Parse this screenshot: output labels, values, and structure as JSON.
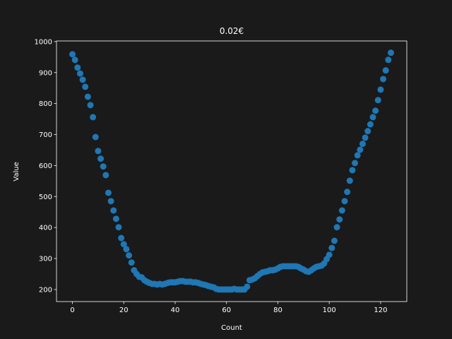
{
  "chart_data": {
    "type": "scatter",
    "title": "0.02€",
    "x_label": "Count",
    "y_label": "Value",
    "x": [
      0,
      1,
      2,
      3,
      4,
      5,
      6,
      7,
      8,
      9,
      10,
      11,
      12,
      13,
      14,
      15,
      16,
      17,
      18,
      19,
      20,
      21,
      22,
      23,
      24,
      25,
      26,
      27,
      28,
      29,
      30,
      31,
      32,
      33,
      34,
      35,
      36,
      37,
      38,
      39,
      40,
      41,
      42,
      43,
      44,
      45,
      46,
      47,
      48,
      49,
      50,
      51,
      52,
      53,
      54,
      55,
      56,
      57,
      58,
      59,
      60,
      61,
      62,
      63,
      64,
      65,
      66,
      67,
      68,
      69,
      70,
      71,
      72,
      73,
      74,
      75,
      76,
      77,
      78,
      79,
      80,
      81,
      82,
      83,
      84,
      85,
      86,
      87,
      88,
      89,
      90,
      91,
      92,
      93,
      94,
      95,
      96,
      97,
      98,
      99,
      100,
      101,
      102,
      103,
      104,
      105,
      106,
      107,
      108,
      109,
      110,
      111,
      112,
      113,
      114,
      115,
      116,
      117,
      118,
      119,
      120,
      121,
      122,
      123,
      124
    ],
    "values": [
      959,
      941,
      916,
      897,
      877,
      854,
      822,
      795,
      756,
      692,
      647,
      622,
      597,
      569,
      512,
      485,
      455,
      428,
      401,
      366,
      346,
      330,
      310,
      287,
      262,
      250,
      241,
      239,
      230,
      225,
      221,
      218,
      218,
      216,
      218,
      216,
      218,
      221,
      223,
      223,
      223,
      225,
      227,
      227,
      225,
      225,
      225,
      223,
      223,
      221,
      218,
      216,
      214,
      211,
      209,
      207,
      202,
      200,
      200,
      200,
      200,
      200,
      200,
      202,
      200,
      200,
      200,
      200,
      209,
      230,
      232,
      236,
      243,
      250,
      255,
      257,
      259,
      262,
      262,
      264,
      268,
      273,
      275,
      275,
      275,
      275,
      275,
      275,
      273,
      268,
      264,
      259,
      257,
      262,
      268,
      273,
      275,
      277,
      284,
      298,
      312,
      334,
      357,
      401,
      426,
      455,
      485,
      515,
      551,
      585,
      608,
      633,
      651,
      670,
      690,
      711,
      733,
      756,
      777,
      811,
      845,
      879,
      907,
      941,
      964
    ],
    "color": "#1f77b4",
    "xlim": [
      -6.2,
      130.2
    ],
    "ylim": [
      161,
      1002
    ],
    "xticks": [
      0,
      20,
      40,
      60,
      80,
      100,
      120
    ],
    "yticks": [
      200,
      300,
      400,
      500,
      600,
      700,
      800,
      900,
      1000
    ]
  }
}
